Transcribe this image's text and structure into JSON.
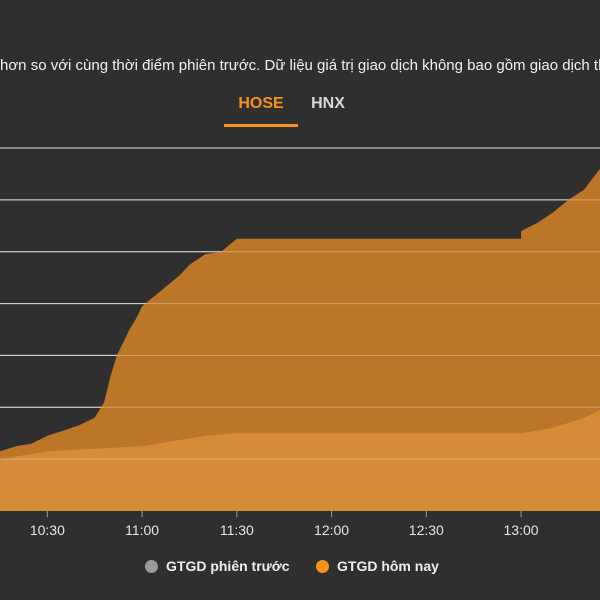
{
  "note": "hơn so với cùng thời điểm phiên trước. Dữ liệu giá trị giao dịch không bao gồm giao dịch thỏa thuận.",
  "tabs": [
    {
      "label": "HOSE",
      "active": true
    },
    {
      "label": "HNX",
      "active": false
    }
  ],
  "colors": {
    "background": "#2f2f2f",
    "accent": "#f7941d",
    "today_fill": "#c47a28",
    "previous_fill": "#d88f38",
    "gridline": "#d9d9d9",
    "previous_legend": "#9a9a9a"
  },
  "chart_data": {
    "type": "area",
    "title": "",
    "xlabel": "",
    "ylabel": "",
    "xlim": [
      "10:15",
      "13:25"
    ],
    "ylim": [
      0,
      7
    ],
    "grid": true,
    "legend_position": "bottom",
    "x_ticks": [
      "10:30",
      "11:00",
      "11:30",
      "12:00",
      "12:30",
      "13:00",
      "13:"
    ],
    "series": [
      {
        "name": "GTGD hôm nay",
        "color": "#c47a28",
        "x": [
          "10:15",
          "10:20",
          "10:25",
          "10:30",
          "10:35",
          "10:40",
          "10:45",
          "10:48",
          "10:50",
          "10:52",
          "10:54",
          "10:56",
          "10:58",
          "11:00",
          "11:05",
          "11:10",
          "11:12",
          "11:15",
          "11:20",
          "11:25",
          "11:30",
          "11:40",
          "12:00",
          "12:30",
          "13:00",
          "13:00",
          "13:05",
          "13:10",
          "13:15",
          "13:20",
          "13:25"
        ],
        "values": [
          1.15,
          1.25,
          1.3,
          1.45,
          1.55,
          1.65,
          1.8,
          2.1,
          2.6,
          3.0,
          3.25,
          3.5,
          3.7,
          3.95,
          4.2,
          4.45,
          4.55,
          4.75,
          4.95,
          5.0,
          5.25,
          5.25,
          5.25,
          5.25,
          5.25,
          5.4,
          5.55,
          5.75,
          6.0,
          6.2,
          6.6
        ]
      },
      {
        "name": "GTGD phiên trước",
        "color": "#d88f38",
        "x": [
          "10:15",
          "10:30",
          "10:45",
          "11:00",
          "11:05",
          "11:10",
          "11:20",
          "11:30",
          "12:00",
          "12:30",
          "13:00",
          "13:10",
          "13:20",
          "13:25"
        ],
        "values": [
          1.0,
          1.15,
          1.2,
          1.25,
          1.3,
          1.35,
          1.45,
          1.5,
          1.5,
          1.5,
          1.5,
          1.6,
          1.8,
          1.95
        ]
      }
    ]
  },
  "legend": [
    {
      "label": "GTGD phiên trước",
      "color": "#9a9a9a"
    },
    {
      "label": "GTGD hôm nay",
      "color": "#f7941d"
    }
  ]
}
